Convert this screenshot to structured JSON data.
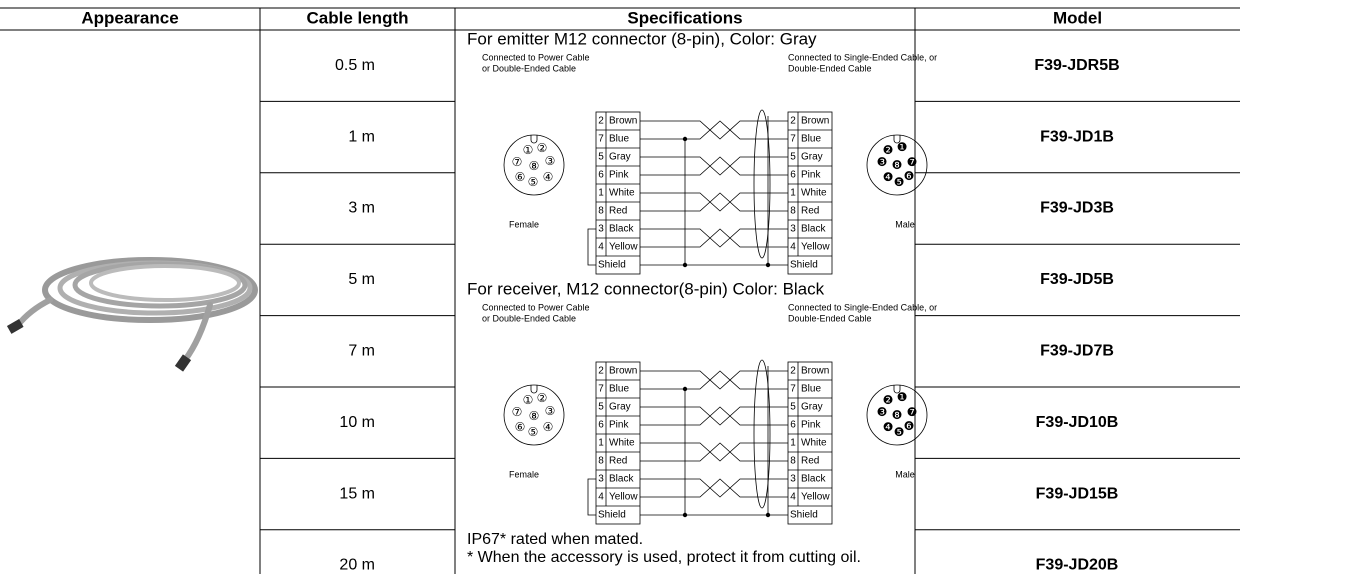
{
  "table": {
    "header": [
      "Appearance",
      "Cable length",
      "Specifications",
      "Model"
    ],
    "rows": [
      {
        "length": "0.5 m",
        "model": "F39-JDR5B"
      },
      {
        "length": "1 m",
        "model": "F39-JD1B"
      },
      {
        "length": "3 m",
        "model": "F39-JD3B"
      },
      {
        "length": "5 m",
        "model": "F39-JD5B"
      },
      {
        "length": "7 m",
        "model": "F39-JD7B"
      },
      {
        "length": "10 m",
        "model": "F39-JD10B"
      },
      {
        "length": "15 m",
        "model": "F39-JD15B"
      },
      {
        "length": "20 m",
        "model": "F39-JD20B"
      }
    ]
  },
  "specifications": {
    "sections": [
      {
        "title": "For emitter M12 connector (8-pin), Color: Gray",
        "left_caption": [
          "Connected to Power Cable",
          "or Double-Ended Cable"
        ],
        "right_caption": [
          "Connected to Single-Ended Cable, or",
          "Double-Ended Cable"
        ],
        "female_label": "Female",
        "male_label": "Male",
        "wires": [
          {
            "pin": "2",
            "color": "Brown"
          },
          {
            "pin": "7",
            "color": "Blue"
          },
          {
            "pin": "5",
            "color": "Gray"
          },
          {
            "pin": "6",
            "color": "Pink"
          },
          {
            "pin": "1",
            "color": "White"
          },
          {
            "pin": "8",
            "color": "Red"
          },
          {
            "pin": "3",
            "color": "Black"
          },
          {
            "pin": "4",
            "color": "Yellow"
          }
        ],
        "shield": "Shield"
      },
      {
        "title": "For receiver, M12 connector(8-pin) Color: Black",
        "left_caption": [
          "Connected to Power Cable",
          "or Double-Ended Cable"
        ],
        "right_caption": [
          "Connected to Single-Ended Cable, or",
          "Double-Ended Cable"
        ],
        "female_label": "Female",
        "male_label": "Male",
        "wires": [
          {
            "pin": "2",
            "color": "Brown"
          },
          {
            "pin": "7",
            "color": "Blue"
          },
          {
            "pin": "5",
            "color": "Gray"
          },
          {
            "pin": "6",
            "color": "Pink"
          },
          {
            "pin": "1",
            "color": "White"
          },
          {
            "pin": "8",
            "color": "Red"
          },
          {
            "pin": "3",
            "color": "Black"
          },
          {
            "pin": "4",
            "color": "Yellow"
          }
        ],
        "shield": "Shield"
      }
    ],
    "female_pins": [
      "①",
      "②",
      "⑦",
      "⑧",
      "③",
      "⑥",
      "⑤",
      "④"
    ],
    "male_pins": [
      "❷",
      "❶",
      "❸",
      "❽",
      "❼",
      "❹",
      "❺",
      "❻"
    ],
    "notes": [
      "IP67* rated when mated.",
      "*  When the accessory is used, protect it from cutting oil."
    ]
  }
}
